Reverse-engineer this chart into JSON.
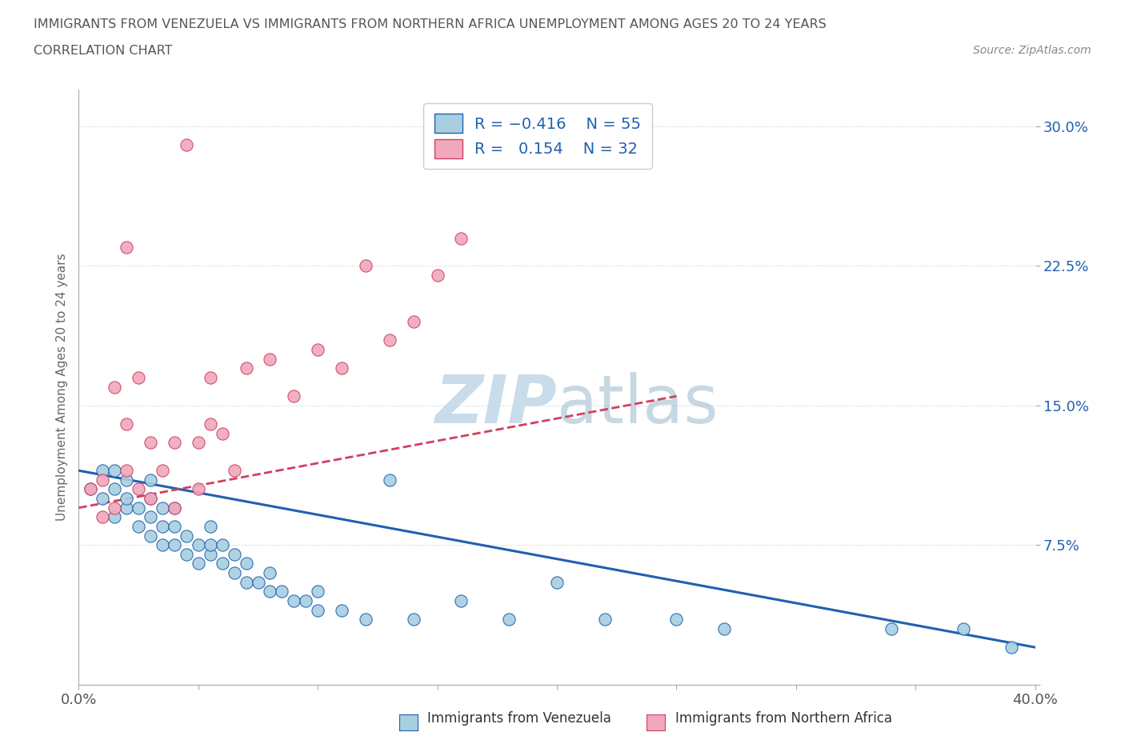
{
  "title_line1": "IMMIGRANTS FROM VENEZUELA VS IMMIGRANTS FROM NORTHERN AFRICA UNEMPLOYMENT AMONG AGES 20 TO 24 YEARS",
  "title_line2": "CORRELATION CHART",
  "source_text": "Source: ZipAtlas.com",
  "ylabel": "Unemployment Among Ages 20 to 24 years",
  "xmin": 0.0,
  "xmax": 0.4,
  "ymin": 0.0,
  "ymax": 0.32,
  "color_venezuela": "#a8cfe0",
  "color_n_africa": "#f0a8bc",
  "trend_color_venezuela": "#2060b0",
  "trend_color_n_africa": "#d04060",
  "background_color": "#ffffff",
  "watermark_color": "#c8dcea",
  "venezuela_x": [
    0.005,
    0.01,
    0.01,
    0.015,
    0.015,
    0.015,
    0.02,
    0.02,
    0.02,
    0.025,
    0.025,
    0.03,
    0.03,
    0.03,
    0.03,
    0.035,
    0.035,
    0.035,
    0.04,
    0.04,
    0.04,
    0.045,
    0.045,
    0.05,
    0.05,
    0.055,
    0.055,
    0.055,
    0.06,
    0.06,
    0.065,
    0.065,
    0.07,
    0.07,
    0.075,
    0.08,
    0.08,
    0.085,
    0.09,
    0.095,
    0.1,
    0.1,
    0.11,
    0.12,
    0.13,
    0.14,
    0.16,
    0.18,
    0.2,
    0.22,
    0.25,
    0.27,
    0.34,
    0.37,
    0.39
  ],
  "venezuela_y": [
    0.105,
    0.1,
    0.115,
    0.09,
    0.105,
    0.115,
    0.095,
    0.1,
    0.11,
    0.085,
    0.095,
    0.08,
    0.09,
    0.1,
    0.11,
    0.075,
    0.085,
    0.095,
    0.075,
    0.085,
    0.095,
    0.07,
    0.08,
    0.065,
    0.075,
    0.07,
    0.075,
    0.085,
    0.065,
    0.075,
    0.06,
    0.07,
    0.055,
    0.065,
    0.055,
    0.05,
    0.06,
    0.05,
    0.045,
    0.045,
    0.04,
    0.05,
    0.04,
    0.035,
    0.11,
    0.035,
    0.045,
    0.035,
    0.055,
    0.035,
    0.035,
    0.03,
    0.03,
    0.03,
    0.02
  ],
  "n_africa_x": [
    0.005,
    0.01,
    0.01,
    0.015,
    0.015,
    0.02,
    0.02,
    0.025,
    0.025,
    0.03,
    0.03,
    0.035,
    0.04,
    0.04,
    0.045,
    0.05,
    0.05,
    0.055,
    0.055,
    0.06,
    0.065,
    0.07,
    0.08,
    0.09,
    0.1,
    0.11,
    0.12,
    0.13,
    0.14,
    0.15,
    0.16,
    0.02
  ],
  "n_africa_y": [
    0.105,
    0.09,
    0.11,
    0.095,
    0.16,
    0.115,
    0.14,
    0.105,
    0.165,
    0.1,
    0.13,
    0.115,
    0.095,
    0.13,
    0.29,
    0.105,
    0.13,
    0.14,
    0.165,
    0.135,
    0.115,
    0.17,
    0.175,
    0.155,
    0.18,
    0.17,
    0.225,
    0.185,
    0.195,
    0.22,
    0.24,
    0.235
  ],
  "ven_trend_x": [
    0.0,
    0.4
  ],
  "ven_trend_y": [
    0.115,
    0.02
  ],
  "naf_trend_x": [
    0.0,
    0.25
  ],
  "naf_trend_y": [
    0.095,
    0.155
  ]
}
